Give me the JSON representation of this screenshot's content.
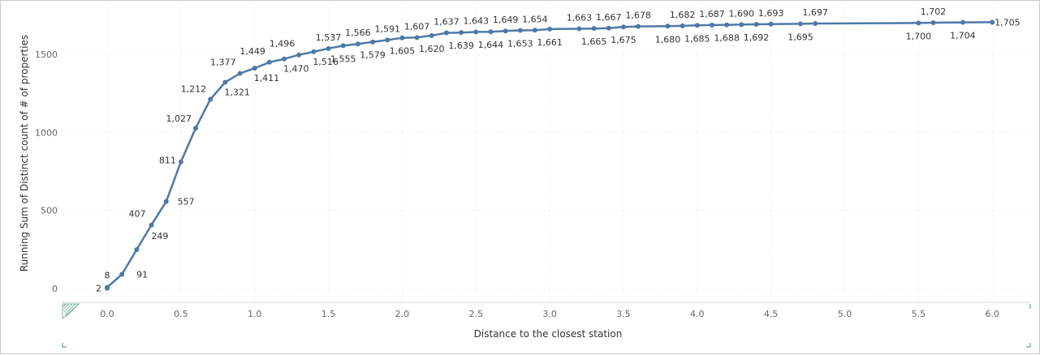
{
  "chart_data": {
    "type": "line",
    "title": "",
    "xlabel": "Distance to the closest station",
    "ylabel": "Running Sum of Distinct count of # of properties",
    "xlim": [
      -0.3,
      6.3
    ],
    "ylim": [
      -80,
      1735
    ],
    "x_ticks": [
      "0.0",
      "0.5",
      "1.0",
      "1.5",
      "2.0",
      "2.5",
      "3.0",
      "3.5",
      "4.0",
      "4.5",
      "5.0",
      "5.5",
      "6.0"
    ],
    "y_ticks": [
      "0",
      "500",
      "1000",
      "1500"
    ],
    "grid": true,
    "line_color": "#4e79a7",
    "series": [
      {
        "x": [
          0.0,
          0.0,
          0.1,
          0.2,
          0.3,
          0.4,
          0.5,
          0.6,
          0.7,
          0.8,
          0.9,
          1.0,
          1.1,
          1.2,
          1.3,
          1.4,
          1.5,
          1.6,
          1.7,
          1.8,
          1.9,
          2.0,
          2.1,
          2.2,
          2.3,
          2.4,
          2.5,
          2.6,
          2.7,
          2.8,
          2.9,
          3.0,
          3.2,
          3.3,
          3.4,
          3.5,
          3.6,
          3.8,
          3.9,
          4.0,
          4.1,
          4.2,
          4.3,
          4.4,
          4.5,
          4.7,
          4.8,
          5.5,
          5.6,
          5.8,
          6.0
        ],
        "values": [
          2,
          8,
          91,
          249,
          407,
          557,
          811,
          1027,
          1212,
          1321,
          1377,
          1411,
          1449,
          1470,
          1496,
          1516,
          1537,
          1555,
          1566,
          1579,
          1591,
          1605,
          1607,
          1620,
          1637,
          1639,
          1643,
          1644,
          1649,
          1653,
          1654,
          1661,
          1663,
          1665,
          1667,
          1675,
          1678,
          1680,
          1682,
          1685,
          1687,
          1688,
          1690,
          1692,
          1693,
          1695,
          1697,
          1700,
          1702,
          1704,
          1705
        ],
        "labels": [
          "2",
          "8",
          "91",
          "249",
          "407",
          "557",
          "811",
          "1,027",
          "1,212",
          "1,321",
          "1,377",
          "1,411",
          "1,449",
          "1,470",
          "1,496",
          "1,516",
          "1,537",
          "1,555",
          "1,566",
          "1,579",
          "1,591",
          "1,605",
          "1,607",
          "1,620",
          "1,637",
          "1,639",
          "1,643",
          "1,644",
          "1,649",
          "1,653",
          "1,654",
          "1,661",
          "1,663",
          "1,665",
          "1,667",
          "1,675",
          "1,678",
          "1,680",
          "1,682",
          "1,685",
          "1,687",
          "1,688",
          "1,690",
          "1,692",
          "1,693",
          "1,695",
          "1,697",
          "1,700",
          "1,702",
          "1,704",
          "1,705"
        ]
      }
    ]
  }
}
